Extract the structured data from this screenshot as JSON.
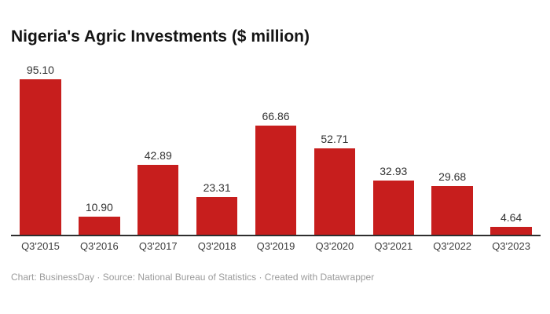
{
  "title": "Nigeria's Agric Investments ($ million)",
  "footer": {
    "text": "Chart: BusinessDay · Source: National Bureau of Statistics · Created with Datawrapper"
  },
  "colors": {
    "background": "#ffffff",
    "bar": "#c71e1d",
    "title_color": "#141414",
    "value_label": "#333333",
    "tick_label": "#3d3d3d",
    "axis_line": "#2e2e2e",
    "footer_color": "#9b9b9b"
  },
  "chart_data": {
    "type": "bar",
    "title": "Nigeria's Agric Investments ($ million)",
    "categories": [
      "Q3'2015",
      "Q3'2016",
      "Q3'2017",
      "Q3'2018",
      "Q3'2019",
      "Q3'2020",
      "Q3'2021",
      "Q3'2022",
      "Q3'2023"
    ],
    "values": [
      95.1,
      10.9,
      42.89,
      23.31,
      66.86,
      52.71,
      32.93,
      29.68,
      4.64
    ],
    "value_labels": [
      "95.10",
      "10.90",
      "42.89",
      "23.31",
      "66.86",
      "52.71",
      "32.93",
      "29.68",
      "4.64"
    ],
    "xlabel": "",
    "ylabel": "",
    "ylim": [
      0,
      100
    ],
    "grid": false,
    "legend": false,
    "bar_color": "#c71e1d",
    "value_labels_position": "above-bars",
    "baseline_axis": "x"
  }
}
